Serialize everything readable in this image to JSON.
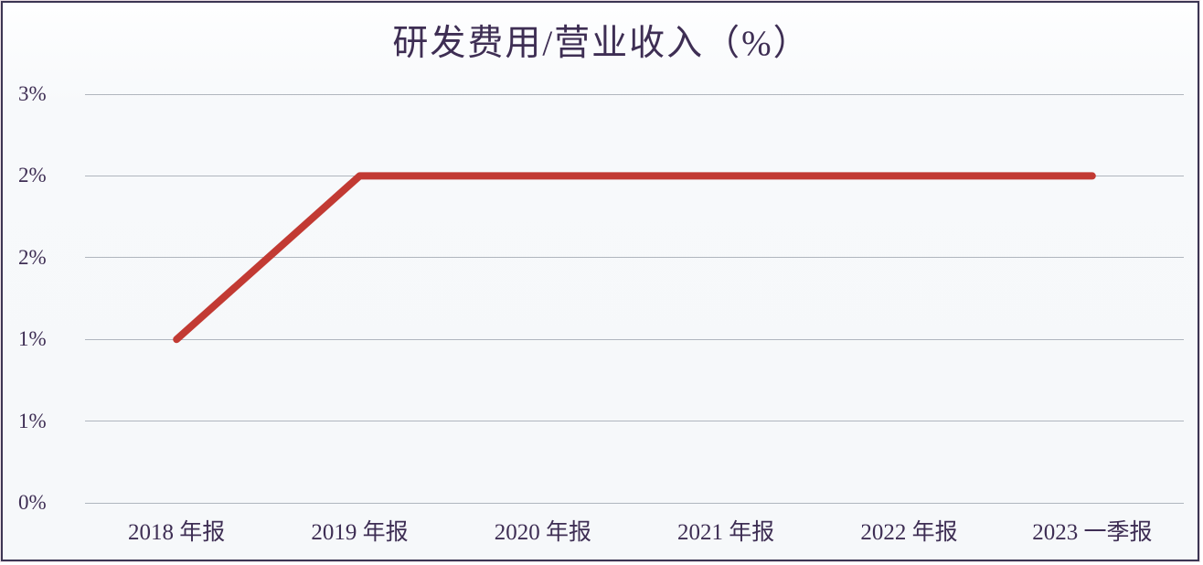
{
  "chart_data": {
    "type": "line",
    "title": "研发费用/营业收入（%）",
    "categories": [
      "2018 年报",
      "2019 年报",
      "2020 年报",
      "2021 年报",
      "2022 年报",
      "2023 一季报"
    ],
    "values": [
      1.2,
      2.4,
      2.4,
      2.4,
      2.4,
      2.4
    ],
    "xlabel": "",
    "ylabel": "",
    "ylim": [
      0,
      3
    ],
    "y_ticks": [
      {
        "value": 0.0,
        "label": "0%"
      },
      {
        "value": 0.6,
        "label": "1%"
      },
      {
        "value": 1.2,
        "label": "1%"
      },
      {
        "value": 1.8,
        "label": "2%"
      },
      {
        "value": 2.4,
        "label": "2%"
      },
      {
        "value": 3.0,
        "label": "3%"
      }
    ],
    "grid": "horizontal-only",
    "legend": "none",
    "colors": {
      "line": "#c23a33",
      "text": "#3e2e54",
      "gridline": "#b0b6be",
      "frame_border": "#3c3553",
      "background": "#f7f9fb"
    }
  }
}
